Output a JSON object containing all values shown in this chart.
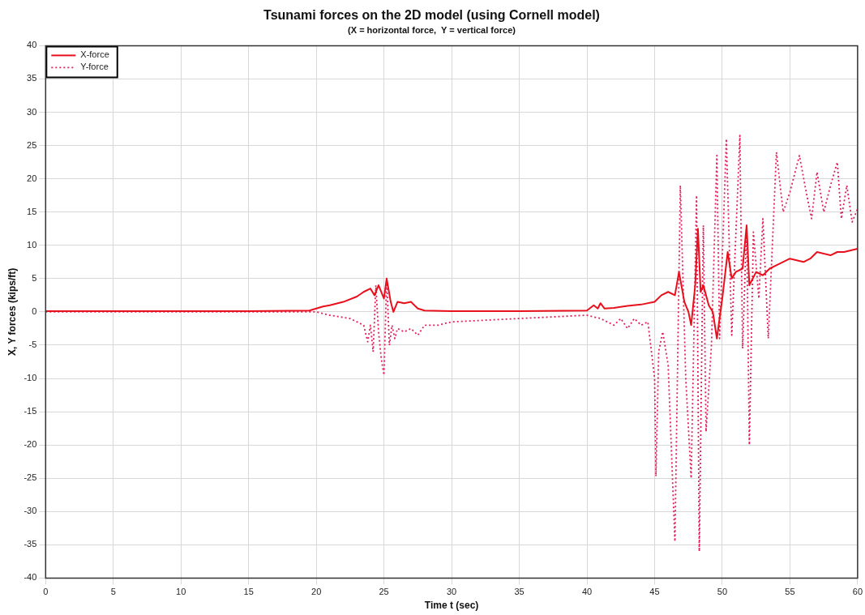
{
  "chart_data": {
    "type": "line",
    "title": "Tsunami forces on the 2D model (using Cornell model)",
    "subtitle": "(X = horizontal force,  Y = vertical force)",
    "xlabel": "Time t (sec)",
    "ylabel": "X, Y forces (kips/ft)",
    "xlim": [
      0,
      60
    ],
    "xticks": [
      0,
      5,
      10,
      15,
      20,
      25,
      30,
      35,
      40,
      45,
      50,
      55,
      60
    ],
    "ylim": [
      -40,
      40
    ],
    "yticks": [
      -40,
      -35,
      -30,
      -25,
      -20,
      -15,
      -10,
      -5,
      0,
      5,
      10,
      15,
      20,
      25,
      30,
      35,
      40
    ],
    "grid": true,
    "legend": "top left",
    "marker": "none",
    "series": [
      {
        "name": "X-force",
        "color": "#e8101c",
        "line_style": "solid",
        "x": [
          0,
          5,
          10,
          15,
          19.5,
          20.5,
          21,
          22,
          23,
          23.5,
          24,
          24.3,
          24.6,
          25,
          25.2,
          25.5,
          25.7,
          26,
          26.5,
          27,
          27.5,
          28,
          30,
          35,
          40,
          40.5,
          40.8,
          41,
          41.3,
          42,
          43,
          44,
          45,
          45.5,
          46,
          46.5,
          46.8,
          47.2,
          47.5,
          47.7,
          48,
          48.2,
          48.4,
          48.6,
          49,
          49.3,
          49.6,
          50,
          50.4,
          50.7,
          51,
          51.5,
          51.8,
          52,
          52.5,
          53,
          53.5,
          54,
          55,
          56,
          56.5,
          57,
          58,
          58.5,
          59,
          60
        ],
        "values": [
          0.1,
          0.1,
          0.1,
          0.1,
          0.2,
          0.8,
          1,
          1.5,
          2.3,
          3,
          3.5,
          2.5,
          4,
          2,
          5,
          1.5,
          0,
          1.5,
          1.3,
          1.5,
          0.5,
          0.2,
          0.1,
          0.1,
          0.2,
          1,
          0.5,
          1.3,
          0.5,
          0.6,
          0.9,
          1.1,
          1.5,
          2.5,
          3,
          2.5,
          6,
          1.5,
          0,
          -2,
          4,
          12.5,
          3,
          4,
          1,
          0,
          -4,
          2,
          9,
          5,
          6,
          6.5,
          13,
          4,
          6,
          5.5,
          6.5,
          7,
          8,
          7.5,
          8,
          9,
          8.5,
          9,
          9,
          9.5
        ]
      },
      {
        "name": "Y-force",
        "color": "#e0205a",
        "line_style": "dotted",
        "x": [
          0,
          5,
          10,
          15,
          20,
          21,
          22.5,
          23.5,
          23.8,
          24,
          24.2,
          24.4,
          24.6,
          24.8,
          25,
          25.2,
          25.4,
          25.6,
          25.8,
          26,
          26.5,
          27,
          27.5,
          28,
          29,
          30,
          35,
          40,
          41,
          42,
          42.5,
          43,
          43.5,
          44,
          44.5,
          45,
          45.1,
          45.3,
          45.6,
          46,
          46.5,
          46.9,
          47.3,
          47.7,
          48.1,
          48.3,
          48.6,
          48.8,
          49.2,
          49.6,
          49.8,
          50.3,
          50.7,
          51.3,
          51.5,
          51.8,
          52,
          52.3,
          52.7,
          53,
          53.4,
          54,
          54.5,
          55,
          55.7,
          56.2,
          56.6,
          57,
          57.5,
          58,
          58.5,
          58.8,
          59.2,
          59.6,
          60
        ],
        "values": [
          0,
          0,
          0,
          0,
          0,
          -0.5,
          -1,
          -2,
          -4.5,
          -2,
          -6,
          4,
          -3,
          -7,
          -9.5,
          5,
          -5,
          -2,
          -4,
          -2.5,
          -3,
          -2.5,
          -3.5,
          -2,
          -2,
          -1.5,
          -1,
          -0.5,
          -1,
          -2,
          -1,
          -2.5,
          -1,
          -2,
          -1.5,
          -10,
          -24.7,
          -6,
          -3,
          -8,
          -34.5,
          19,
          -10,
          -25,
          17.5,
          -36,
          13,
          -18,
          -5,
          23.5,
          -4,
          26,
          -3.5,
          26.5,
          -5.5,
          13,
          -20,
          12,
          2,
          14,
          -4,
          24,
          15,
          18,
          23.5,
          18,
          14,
          21,
          15,
          19,
          22.5,
          14,
          19,
          13.5,
          15.5
        ]
      }
    ]
  }
}
